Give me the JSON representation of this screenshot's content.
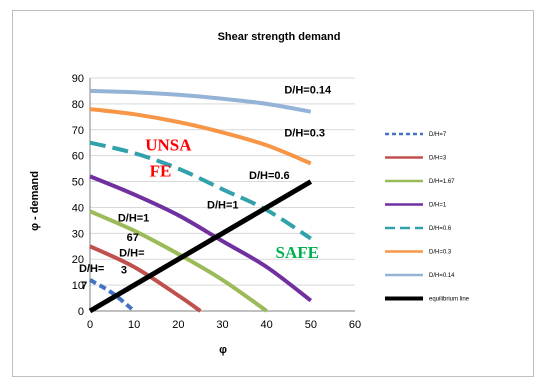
{
  "chart_data": {
    "type": "line",
    "title": "Shear strength demand",
    "xlabel": "φ",
    "ylabel": "φ - demand",
    "xlim": [
      0,
      60
    ],
    "ylim": [
      0,
      90
    ],
    "xticks": [
      0,
      10,
      20,
      30,
      40,
      50,
      60
    ],
    "yticks": [
      0,
      10,
      20,
      30,
      40,
      50,
      60,
      70,
      80,
      90
    ],
    "grid": "horizontal",
    "legend_position": "right",
    "series": [
      {
        "name": "D/H=7",
        "color": "#4472c4",
        "dash": "dashed",
        "x": [
          0,
          5,
          10
        ],
        "y": [
          12,
          7,
          0
        ]
      },
      {
        "name": "D/H=3",
        "color": "#c0504d",
        "dash": "solid",
        "x": [
          0,
          10,
          20,
          25
        ],
        "y": [
          25,
          17,
          6,
          0
        ]
      },
      {
        "name": "D/H=1.67",
        "color": "#9bbb59",
        "dash": "solid",
        "x": [
          0,
          10,
          20,
          30,
          40
        ],
        "y": [
          38.5,
          31,
          22,
          12,
          0
        ]
      },
      {
        "name": "D/H=1",
        "color": "#7030a0",
        "dash": "solid",
        "x": [
          0,
          10,
          20,
          30,
          40,
          50
        ],
        "y": [
          52,
          45,
          37,
          27,
          17,
          4
        ]
      },
      {
        "name": "D/H=0.6",
        "color": "#31a2ac",
        "dash": "longdash",
        "x": [
          0,
          10,
          20,
          30,
          40,
          50
        ],
        "y": [
          65,
          61,
          55,
          47,
          39,
          28
        ]
      },
      {
        "name": "D/H=0.3",
        "color": "#f79646",
        "dash": "solid",
        "x": [
          0,
          10,
          20,
          30,
          40,
          50
        ],
        "y": [
          78,
          76,
          73,
          69,
          64,
          57
        ]
      },
      {
        "name": "D/H=0.14",
        "color": "#95b3d7",
        "dash": "solid",
        "x": [
          0,
          10,
          20,
          30,
          40,
          50
        ],
        "y": [
          85,
          84.5,
          83.5,
          82,
          80,
          77
        ]
      },
      {
        "name": "equilibrium line",
        "color": "#000000",
        "dash": "solid",
        "x": [
          0,
          50
        ],
        "y": [
          0,
          50
        ]
      }
    ],
    "annotations": [
      {
        "text": "D/H=0.14",
        "x": 44,
        "y": 84,
        "color": "#000000"
      },
      {
        "text": "D/H=0.3",
        "x": 44,
        "y": 67.5,
        "color": "#000000"
      },
      {
        "text": "D/H=0.6",
        "x": 36,
        "y": 51,
        "color": "#000000"
      },
      {
        "text": "D/H=1",
        "x": 26.5,
        "y": 39.5,
        "color": "#000000"
      },
      {
        "text": "D/H=1",
        "x": 6.3,
        "y": 34.5,
        "color": "#000000"
      },
      {
        "text": "67",
        "x": 8.3,
        "y": 27,
        "color": "#000000"
      },
      {
        "text": "D/H=",
        "x": 6.6,
        "y": 21,
        "color": "#000000"
      },
      {
        "text": "3",
        "x": 7,
        "y": 14.5,
        "color": "#000000"
      },
      {
        "text": "D/H=",
        "x": -2.5,
        "y": 15,
        "color": "#000000"
      },
      {
        "text": "7",
        "x": -2,
        "y": 8.5,
        "color": "#000000"
      },
      {
        "text": "UNSA",
        "x": 12.5,
        "y": 62,
        "color": "#ff0000",
        "big": true
      },
      {
        "text": "FE",
        "x": 13.5,
        "y": 52,
        "color": "#ff0000",
        "big": true
      },
      {
        "text": "SAFE",
        "x": 42,
        "y": 20.5,
        "color": "#00b050",
        "big": true
      }
    ]
  }
}
